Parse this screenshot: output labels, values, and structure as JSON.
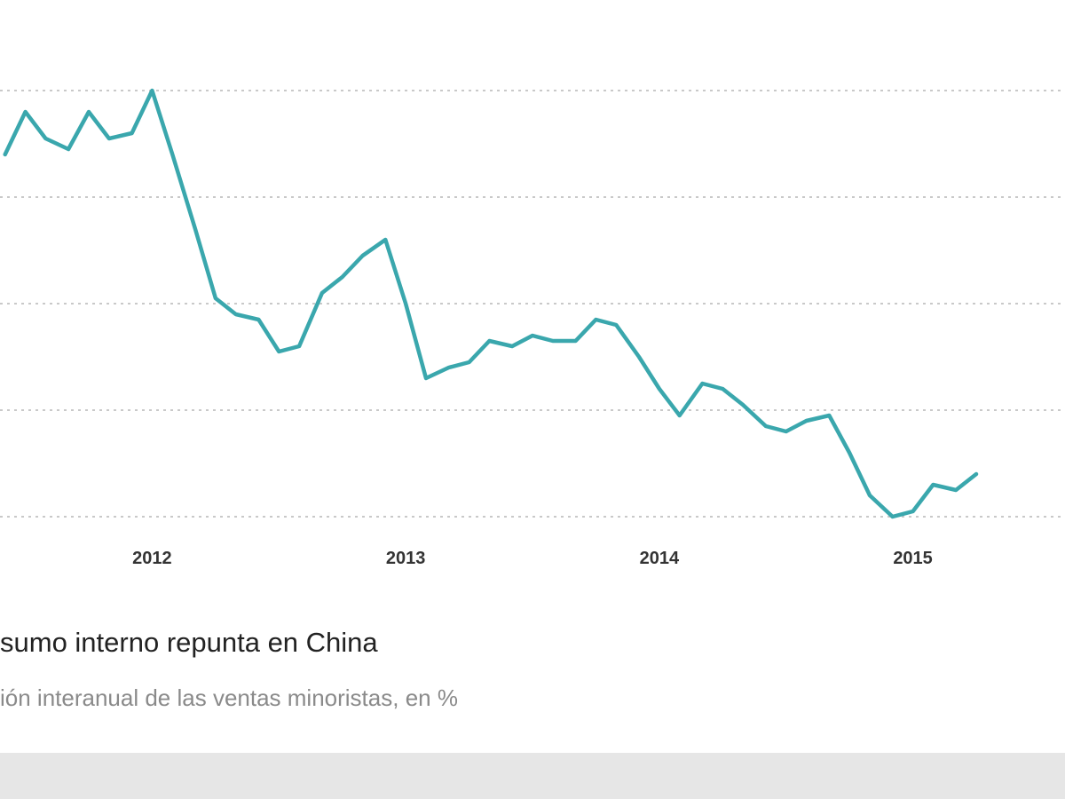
{
  "chart_data": {
    "type": "line",
    "title": "sumo interno repunta en China",
    "subtitle": "ión interanual de las ventas minoristas, en %",
    "xlabel": "",
    "ylabel": "",
    "line_color": "#3aa7ad",
    "grid": true,
    "x_ticks": [
      {
        "label": "2012",
        "x": 2012.0
      },
      {
        "label": "2013",
        "x": 2013.0
      },
      {
        "label": "2014",
        "x": 2014.0
      },
      {
        "label": "2015",
        "x": 2015.0
      }
    ],
    "xlim": [
      2011.4,
      2015.6
    ],
    "ylim": [
      10.0,
      18.0
    ],
    "gridlines_y": [
      10.0,
      12.0,
      14.0,
      16.0,
      18.0
    ],
    "series": [
      {
        "values": [
          [
            2011.42,
            16.8
          ],
          [
            2011.5,
            17.6
          ],
          [
            2011.58,
            17.1
          ],
          [
            2011.67,
            16.9
          ],
          [
            2011.75,
            17.6
          ],
          [
            2011.83,
            17.1
          ],
          [
            2011.92,
            17.2
          ],
          [
            2012.0,
            18.0
          ],
          [
            2012.08,
            16.8
          ],
          [
            2012.17,
            15.4
          ],
          [
            2012.25,
            14.1
          ],
          [
            2012.33,
            13.8
          ],
          [
            2012.42,
            13.7
          ],
          [
            2012.5,
            13.1
          ],
          [
            2012.58,
            13.2
          ],
          [
            2012.67,
            14.2
          ],
          [
            2012.75,
            14.5
          ],
          [
            2012.83,
            14.9
          ],
          [
            2012.92,
            15.2
          ],
          [
            2013.0,
            14.0
          ],
          [
            2013.08,
            12.6
          ],
          [
            2013.17,
            12.8
          ],
          [
            2013.25,
            12.9
          ],
          [
            2013.33,
            13.3
          ],
          [
            2013.42,
            13.2
          ],
          [
            2013.5,
            13.4
          ],
          [
            2013.58,
            13.3
          ],
          [
            2013.67,
            13.3
          ],
          [
            2013.75,
            13.7
          ],
          [
            2013.83,
            13.6
          ],
          [
            2013.92,
            13.0
          ],
          [
            2014.0,
            12.4
          ],
          [
            2014.08,
            11.9
          ],
          [
            2014.17,
            12.5
          ],
          [
            2014.25,
            12.4
          ],
          [
            2014.33,
            12.1
          ],
          [
            2014.42,
            11.7
          ],
          [
            2014.5,
            11.6
          ],
          [
            2014.58,
            11.8
          ],
          [
            2014.67,
            11.9
          ],
          [
            2014.75,
            11.2
          ],
          [
            2014.83,
            10.4
          ],
          [
            2014.92,
            10.0
          ],
          [
            2015.0,
            10.1
          ],
          [
            2015.08,
            10.6
          ],
          [
            2015.17,
            10.5
          ],
          [
            2015.25,
            10.8
          ]
        ]
      }
    ]
  }
}
